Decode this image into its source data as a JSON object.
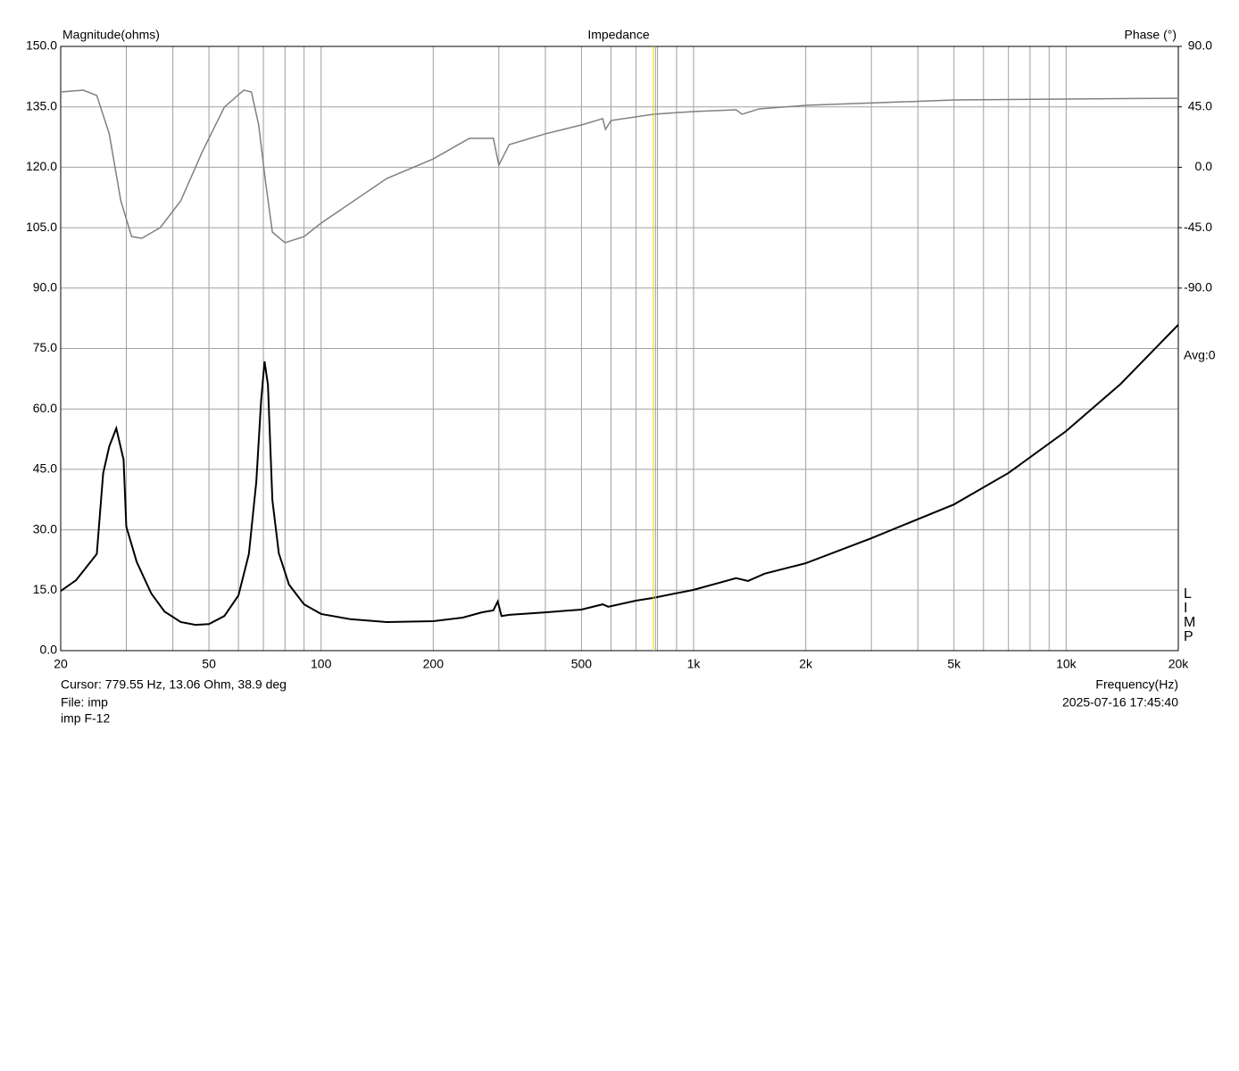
{
  "chart_data": {
    "type": "line",
    "title": "Impedance",
    "y_label": "Magnitude(ohms)",
    "y2_label": "Phase (°)",
    "x_label": "Frequency(Hz)",
    "xscale": "log",
    "grid": true,
    "xlim": [
      20,
      20000
    ],
    "ylim": [
      0,
      150
    ],
    "y2lim": [
      -360,
      90
    ],
    "xticks": [
      20,
      50,
      100,
      200,
      500,
      {
        "value": 1000,
        "label": "1k"
      },
      {
        "value": 2000,
        "label": "2k"
      },
      {
        "value": 5000,
        "label": "5k"
      },
      {
        "value": 10000,
        "label": "10k"
      },
      {
        "value": 20000,
        "label": "20k"
      }
    ],
    "xgrid": [
      30,
      40,
      60,
      70,
      80,
      90,
      300,
      400,
      600,
      700,
      800,
      900,
      3000,
      4000,
      6000,
      7000,
      8000,
      9000
    ],
    "yticks": [
      {
        "value": 0,
        "label": "0.0"
      },
      {
        "value": 15,
        "label": "15.0"
      },
      {
        "value": 30,
        "label": "30.0"
      },
      {
        "value": 45,
        "label": "45.0"
      },
      {
        "value": 60,
        "label": "60.0"
      },
      {
        "value": 75,
        "label": "75.0"
      },
      {
        "value": 90,
        "label": "90.0"
      },
      {
        "value": 105,
        "label": "105.0"
      },
      {
        "value": 120,
        "label": "120.0"
      },
      {
        "value": 135,
        "label": "135.0"
      },
      {
        "value": 150,
        "label": "150.0"
      }
    ],
    "y2ticks": [
      {
        "value": 90,
        "label": "90.0"
      },
      {
        "value": 45,
        "label": "45.0"
      },
      {
        "value": 0,
        "label": "0.0"
      },
      {
        "value": -45,
        "label": "-45.0"
      },
      {
        "value": -90,
        "label": "-90.0"
      }
    ],
    "series": [
      {
        "color": "#000000",
        "axis": "y",
        "x": [
          20,
          22,
          25,
          26,
          27,
          28.2,
          29.5,
          30,
          32,
          35,
          38,
          42,
          46,
          50,
          55,
          60,
          64,
          67,
          69,
          70.5,
          72,
          74,
          77,
          82,
          90,
          100,
          120,
          150,
          200,
          240,
          270,
          290,
          298,
          305,
          320,
          400,
          500,
          570,
          590,
          700,
          780,
          1000,
          1300,
          1400,
          1550,
          2000,
          3000,
          5000,
          7000,
          10000,
          14000,
          20000
        ],
        "values": [
          14.8,
          17.5,
          24,
          44,
          50.7,
          55.2,
          47.4,
          30.8,
          22,
          14.2,
          9.7,
          7.1,
          6.4,
          6.6,
          8.6,
          13.7,
          24,
          41.9,
          61.8,
          71.8,
          66,
          37.4,
          24.2,
          16.4,
          11.5,
          9.1,
          7.8,
          7.1,
          7.3,
          8.2,
          9.5,
          10,
          12.2,
          8.6,
          8.9,
          9.5,
          10.2,
          11.5,
          10.9,
          12.4,
          13.1,
          15.1,
          18,
          17.3,
          19.1,
          21.7,
          27.9,
          36.3,
          44.1,
          54.5,
          66.2,
          80.9
        ]
      },
      {
        "color": "#808080",
        "axis": "y2",
        "x": [
          20,
          23,
          25,
          27,
          29,
          31,
          33,
          37,
          42,
          48,
          55,
          62,
          65,
          68,
          71,
          74,
          80,
          90,
          100,
          150,
          200,
          250,
          290,
          300,
          320,
          400,
          500,
          570,
          580,
          600,
          780,
          1000,
          1300,
          1350,
          1500,
          2000,
          5000,
          10000,
          20000
        ],
        "values": [
          56.1,
          57.4,
          53.4,
          24.9,
          -25,
          -51.6,
          -52.9,
          -45,
          -25,
          11.6,
          44.8,
          57.4,
          56.1,
          31.5,
          -11.7,
          -48.3,
          -56.2,
          -51.6,
          -41.6,
          -8.4,
          6.2,
          21.5,
          21.5,
          1.6,
          16.9,
          24.9,
          31.5,
          36.2,
          28.2,
          34.8,
          39.5,
          41.5,
          42.8,
          39.5,
          43.5,
          46.1,
          50.1,
          50.8,
          51.4
        ]
      }
    ],
    "cursor": {
      "x": 779.55,
      "label": "Cursor: 779.55 Hz, 13.06 Ohm, 38.9 deg"
    },
    "side_label": "Avg:0",
    "watermark": [
      "L",
      "I",
      "M",
      "P"
    ],
    "file": "File: imp",
    "file_title": "imp F-12",
    "timestamp": "2025-07-16 17:45:40"
  }
}
